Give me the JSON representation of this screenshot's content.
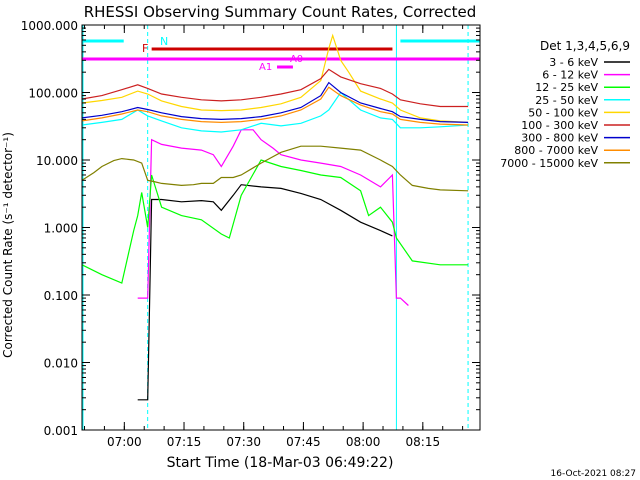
{
  "chart_data": {
    "type": "line",
    "title": "RHESSI Observing Summary Count Rates, Corrected",
    "xlabel": "Start Time (18-Mar-03 06:49:22)",
    "ylabel": "Corrected Count Rate (s⁻¹ detector⁻¹)",
    "yscale": "log",
    "ylim": [
      0.001,
      1000
    ],
    "xlim_minutes_after_start": [
      0,
      100
    ],
    "yticks": [
      "1000.000",
      "100.000",
      "10.000",
      "1.000",
      "0.100",
      "0.010",
      "0.001"
    ],
    "xticks": [
      "07:00",
      "07:15",
      "07:30",
      "07:45",
      "08:00",
      "08:15"
    ],
    "legend_title": "Det 1,3,4,5,6,9",
    "legend_position": "right",
    "footer": "16-Oct-2021 08:27",
    "series": [
      {
        "name": "3 - 6 keV",
        "color": "#000000",
        "x": [
          14,
          16.5,
          17.5,
          20,
          25,
          30,
          33,
          35,
          38,
          40,
          45,
          50,
          55,
          60,
          65,
          70,
          75,
          78
        ],
        "y": [
          0.0028,
          0.0028,
          2.6,
          2.6,
          2.4,
          2.5,
          2.4,
          1.8,
          3.0,
          4.3,
          4.0,
          3.8,
          3.2,
          2.6,
          1.8,
          1.2,
          0.9,
          0.75
        ]
      },
      {
        "name": "6 - 12 keV",
        "color": "#ff00ff",
        "x": [
          14,
          16.5,
          17.5,
          20,
          25,
          30,
          33,
          35,
          38,
          40,
          43,
          45,
          48,
          50,
          55,
          60,
          65,
          70,
          75,
          78,
          79,
          80,
          82
        ],
        "y": [
          0.09,
          0.09,
          20,
          17,
          15,
          14,
          12,
          8,
          16,
          28,
          28,
          20,
          15,
          12,
          10,
          9,
          8,
          6,
          4,
          6,
          0.09,
          0.09,
          0.07
        ]
      },
      {
        "name": "12 - 25 keV",
        "color": "#00ff00",
        "x": [
          0,
          5,
          10,
          13,
          14,
          15,
          16.5,
          17.5,
          20,
          25,
          30,
          35,
          37,
          40,
          45,
          50,
          55,
          60,
          65,
          70,
          72,
          75,
          78,
          79,
          83,
          90,
          97
        ],
        "y": [
          0.28,
          0.2,
          0.15,
          0.9,
          1.5,
          3.3,
          1.0,
          6,
          2.0,
          1.5,
          1.3,
          0.8,
          0.7,
          3.0,
          10,
          8,
          7,
          6,
          5.5,
          3.5,
          1.5,
          2.0,
          1.2,
          0.7,
          0.32,
          0.28,
          0.28
        ]
      },
      {
        "name": "25 - 50 keV",
        "color": "#00ffff",
        "x": [
          0,
          5,
          10,
          14,
          16.5,
          20,
          25,
          30,
          35,
          40,
          45,
          50,
          55,
          60,
          62,
          65,
          70,
          75,
          78,
          80,
          85,
          90,
          97
        ],
        "y": [
          33,
          36,
          40,
          55,
          45,
          38,
          30,
          27,
          26,
          28,
          35,
          32,
          35,
          45,
          55,
          100,
          55,
          42,
          40,
          30,
          30,
          31,
          33
        ]
      },
      {
        "name": "50 - 100 keV",
        "color": "#ffd700",
        "x": [
          0,
          5,
          10,
          14,
          16.5,
          20,
          25,
          30,
          35,
          40,
          45,
          50,
          55,
          60,
          62,
          63,
          65,
          67,
          70,
          75,
          78,
          80,
          85,
          90,
          97
        ],
        "y": [
          70,
          76,
          85,
          105,
          95,
          75,
          62,
          55,
          54,
          55,
          60,
          68,
          85,
          150,
          450,
          700,
          300,
          200,
          105,
          80,
          70,
          55,
          42,
          38,
          36
        ]
      },
      {
        "name": "100 - 300 keV",
        "color": "#cc2020",
        "x": [
          0,
          5,
          10,
          14,
          16.5,
          20,
          25,
          30,
          35,
          40,
          45,
          50,
          55,
          60,
          62,
          65,
          70,
          75,
          78,
          80,
          85,
          90,
          97
        ],
        "y": [
          80,
          90,
          110,
          130,
          115,
          95,
          85,
          78,
          75,
          78,
          85,
          95,
          110,
          160,
          220,
          170,
          135,
          115,
          95,
          78,
          68,
          62,
          62
        ]
      },
      {
        "name": "300 - 800 keV",
        "color": "#0000cc",
        "x": [
          0,
          5,
          10,
          14,
          16.5,
          20,
          25,
          30,
          35,
          40,
          45,
          50,
          55,
          60,
          62,
          65,
          70,
          75,
          78,
          80,
          85,
          90,
          97
        ],
        "y": [
          42,
          46,
          52,
          60,
          56,
          50,
          44,
          41,
          40,
          41,
          44,
          50,
          60,
          90,
          140,
          100,
          70,
          58,
          52,
          44,
          40,
          37,
          36
        ]
      },
      {
        "name": "800 - 7000 keV",
        "color": "#ff8c00",
        "x": [
          0,
          5,
          10,
          14,
          16.5,
          20,
          25,
          30,
          35,
          40,
          45,
          50,
          55,
          60,
          62,
          65,
          70,
          75,
          78,
          80,
          85,
          90,
          97
        ],
        "y": [
          38,
          42,
          48,
          55,
          52,
          45,
          40,
          37,
          36,
          37,
          40,
          45,
          55,
          80,
          120,
          90,
          65,
          52,
          48,
          40,
          36,
          34,
          33
        ]
      },
      {
        "name": "7000 - 15000 keV",
        "color": "#808000",
        "x": [
          0,
          3,
          5,
          8,
          10,
          13,
          15,
          16.5,
          18,
          20,
          25,
          28,
          30,
          33,
          35,
          38,
          40,
          45,
          50,
          55,
          60,
          65,
          70,
          75,
          78,
          80,
          83,
          87,
          90,
          97
        ],
        "y": [
          5,
          6.5,
          8,
          9.8,
          10.5,
          10,
          9,
          5,
          4.8,
          4.5,
          4.2,
          4.3,
          4.5,
          4.5,
          5.5,
          5.5,
          6,
          9,
          13,
          16,
          16,
          15,
          14,
          10,
          8,
          6,
          4.2,
          3.8,
          3.6,
          3.5
        ]
      }
    ],
    "flags": [
      {
        "label": "N",
        "color": "#00ffff",
        "x_start": 0,
        "x_end": 14,
        "x2_start": 80,
        "x2_end": 100
      },
      {
        "label": "F",
        "color": "#cc0000",
        "x_start": 17.5,
        "x_end": 78
      },
      {
        "label": "",
        "color": "#ff00ff",
        "x_start": 0,
        "x_end": 100
      },
      {
        "label": "A1",
        "color": "#ff00ff",
        "x_start": 49,
        "x_end": 53
      },
      {
        "label": "A0",
        "color": "#ff00ff",
        "x_start": 53,
        "x_end": 53
      }
    ],
    "vertical_lines_minutes": [
      16.5,
      79,
      97
    ]
  }
}
